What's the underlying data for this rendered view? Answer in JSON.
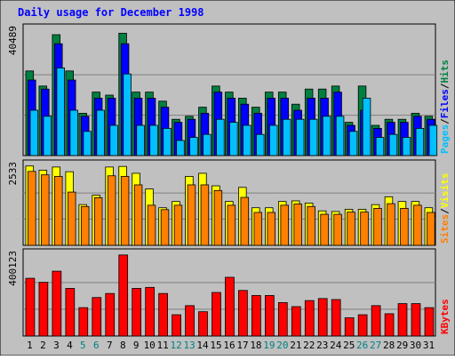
{
  "chart_data": {
    "type": "bar",
    "title": "Daily usage for December 1998",
    "categories": [
      "1",
      "2",
      "3",
      "4",
      "5",
      "6",
      "7",
      "8",
      "9",
      "10",
      "11",
      "12",
      "13",
      "14",
      "15",
      "16",
      "17",
      "18",
      "19",
      "20",
      "21",
      "22",
      "23",
      "24",
      "25",
      "26",
      "27",
      "28",
      "29",
      "30",
      "31"
    ],
    "weekend_days": [
      "5",
      "6",
      "12",
      "13",
      "19",
      "20",
      "26",
      "27"
    ],
    "colors": {
      "background": "#c0c0c0",
      "title": "#0000ff",
      "hits": "#008040",
      "files": "#0000ff",
      "pages": "#00c0ff",
      "visits": "#ffff00",
      "sites": "#ff8000",
      "kbytes": "#ff0000",
      "weekend_label": "#008080",
      "weekday_label": "#000000"
    },
    "panels": [
      {
        "id": "hits-files-pages",
        "ymax_label": "40489",
        "ymax": 40489,
        "label_parts": [
          "Pages",
          "/",
          "Files",
          "/",
          "Hits"
        ],
        "series": [
          {
            "name": "Hits",
            "values": [
              28000,
              23000,
              40000,
              28000,
              14000,
              21000,
              20000,
              40489,
              21000,
              21000,
              18000,
              12000,
              13000,
              16000,
              23000,
              21000,
              19000,
              16000,
              21000,
              21000,
              17000,
              22000,
              22000,
              23000,
              11000,
              23000,
              10000,
              12000,
              12000,
              14000,
              13000
            ]
          },
          {
            "name": "Files",
            "values": [
              25000,
              22000,
              37000,
              25000,
              13000,
              19000,
              19000,
              37000,
              19000,
              19000,
              16000,
              11000,
              12000,
              14000,
              21000,
              19000,
              17000,
              14000,
              19000,
              19000,
              15000,
              19000,
              19000,
              21000,
              10000,
              15000,
              9000,
              11000,
              11000,
              13000,
              12000
            ]
          },
          {
            "name": "Pages",
            "values": [
              15000,
              13000,
              29000,
              15000,
              8000,
              15000,
              10000,
              27000,
              10000,
              10000,
              9000,
              5000,
              6000,
              7000,
              12000,
              11000,
              10000,
              7000,
              10000,
              12000,
              12000,
              12000,
              13000,
              13000,
              8000,
              19000,
              6000,
              7000,
              6000,
              9000,
              10000
            ]
          }
        ]
      },
      {
        "id": "visits-sites",
        "ymax_label": "2533",
        "ymax": 2533,
        "label_parts": [
          "Sites",
          "/",
          "Visits"
        ],
        "series": [
          {
            "name": "Visits",
            "values": [
              2533,
              2400,
              2500,
              2350,
              1300,
              1600,
              2500,
              2520,
              2300,
              1800,
              1200,
              1400,
              2200,
              2300,
              1900,
              1400,
              1850,
              1200,
              1200,
              1400,
              1420,
              1350,
              1100,
              1080,
              1150,
              1150,
              1300,
              1550,
              1400,
              1400,
              1200
            ]
          },
          {
            "name": "Sites",
            "values": [
              2360,
              2250,
              2200,
              1700,
              1240,
              1520,
              2220,
              2200,
              1930,
              1280,
              1140,
              1280,
              1930,
              1930,
              1750,
              1280,
              1530,
              1050,
              1050,
              1280,
              1320,
              1240,
              990,
              990,
              1060,
              1060,
              1180,
              1330,
              1180,
              1280,
              1050
            ]
          }
        ]
      },
      {
        "id": "kbytes",
        "ymax_label": "400123",
        "ymax": 400123,
        "label_parts": [
          "KBytes"
        ],
        "series": [
          {
            "name": "KBytes",
            "values": [
              285000,
              265000,
              320000,
              235000,
              140000,
              190000,
              210000,
              400123,
              235000,
              240000,
              210000,
              105000,
              150000,
              120000,
              215000,
              290000,
              225000,
              200000,
              200000,
              165000,
              145000,
              175000,
              185000,
              180000,
              90000,
              105000,
              150000,
              110000,
              160000,
              160000,
              140000
            ]
          }
        ]
      }
    ]
  }
}
